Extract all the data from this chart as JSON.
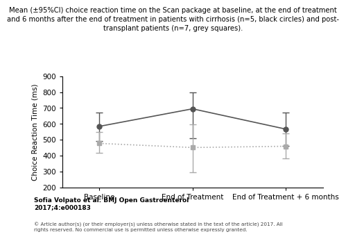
{
  "title_line1": "Mean (±95%CI) choice reaction time on the Scan package at baseline, at the end of treatment",
  "title_line2": "and 6 months after the end of treatment in patients with cirrhosis (n=5, black circles) and post-",
  "title_line3": "transplant patients (n=7, grey squares).",
  "xlabel_ticks": [
    "Baseline",
    "End of Treatment",
    "End of Treatment + 6 months"
  ],
  "ylabel": "Choice Reaction Time (ms)",
  "ylim": [
    200,
    900
  ],
  "yticks": [
    200,
    300,
    400,
    500,
    600,
    700,
    800,
    900
  ],
  "x_positions": [
    0,
    1,
    2
  ],
  "cirrhosis_means": [
    585,
    695,
    568
  ],
  "cirrhosis_ci_upper": [
    672,
    800,
    672
  ],
  "cirrhosis_ci_lower": [
    492,
    510,
    462
  ],
  "transplant_means": [
    478,
    452,
    460
  ],
  "transplant_ci_upper": [
    548,
    598,
    542
  ],
  "transplant_ci_lower": [
    418,
    298,
    382
  ],
  "cirrhosis_color": "#555555",
  "transplant_color": "#aaaaaa",
  "background_color": "#ffffff",
  "author_line1": "Sofia Volpato et al. BMJ Open Gastroenterol",
  "author_line2": "2017;4:e000183",
  "copyright_text": "© Article author(s) (or their employer(s) unless otherwise stated in the text of the article) 2017. All\nrights reserved. No commercial use is permitted unless otherwise expressly granted.",
  "title_fontsize": 7.2,
  "axis_fontsize": 7.5,
  "tick_fontsize": 7.5,
  "logo_color": "#7B2D8B"
}
